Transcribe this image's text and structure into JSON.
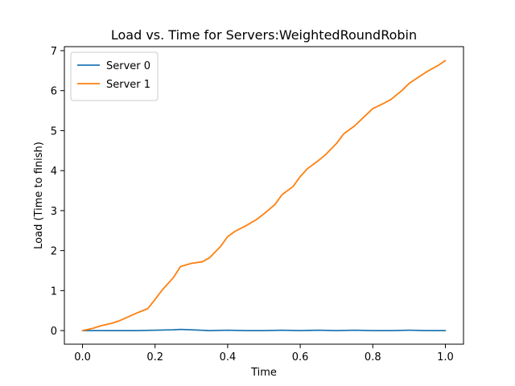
{
  "chart_data": {
    "type": "line",
    "title": "Load vs. Time for Servers:WeightedRoundRobin",
    "xlabel": "Time",
    "ylabel": "Load (Time to finish)",
    "xlim": [
      -0.05,
      1.05
    ],
    "ylim": [
      -0.34,
      7.1
    ],
    "xticks": [
      0.0,
      0.2,
      0.4,
      0.6,
      0.8,
      1.0
    ],
    "xtick_labels": [
      "0.0",
      "0.2",
      "0.4",
      "0.6",
      "0.8",
      "1.0"
    ],
    "yticks": [
      0,
      1,
      2,
      3,
      4,
      5,
      6,
      7
    ],
    "ytick_labels": [
      "0",
      "1",
      "2",
      "3",
      "4",
      "5",
      "6",
      "7"
    ],
    "grid": false,
    "legend_position": "top-left",
    "series": [
      {
        "name": "Server 0",
        "color": "#1f77b4",
        "x": [
          0.0,
          0.05,
          0.1,
          0.15,
          0.2,
          0.25,
          0.27,
          0.3,
          0.35,
          0.4,
          0.45,
          0.5,
          0.55,
          0.6,
          0.65,
          0.7,
          0.75,
          0.8,
          0.85,
          0.9,
          0.95,
          1.0
        ],
        "y": [
          0.0,
          0.0,
          0.0,
          0.0,
          0.01,
          0.02,
          0.03,
          0.02,
          0.0,
          0.01,
          0.0,
          0.0,
          0.01,
          0.0,
          0.01,
          0.0,
          0.01,
          0.0,
          0.0,
          0.01,
          0.0,
          0.0
        ]
      },
      {
        "name": "Server 1",
        "color": "#ff7f0e",
        "x": [
          0.0,
          0.03,
          0.05,
          0.08,
          0.1,
          0.13,
          0.15,
          0.18,
          0.2,
          0.22,
          0.25,
          0.27,
          0.3,
          0.33,
          0.35,
          0.38,
          0.4,
          0.42,
          0.45,
          0.48,
          0.5,
          0.53,
          0.55,
          0.58,
          0.6,
          0.62,
          0.65,
          0.67,
          0.7,
          0.72,
          0.75,
          0.78,
          0.8,
          0.83,
          0.85,
          0.88,
          0.9,
          0.93,
          0.95,
          0.98,
          1.0
        ],
        "y": [
          0.0,
          0.06,
          0.12,
          0.18,
          0.24,
          0.36,
          0.44,
          0.55,
          0.78,
          1.02,
          1.32,
          1.6,
          1.68,
          1.72,
          1.82,
          2.1,
          2.35,
          2.48,
          2.62,
          2.78,
          2.92,
          3.15,
          3.4,
          3.6,
          3.85,
          4.05,
          4.25,
          4.4,
          4.68,
          4.92,
          5.12,
          5.38,
          5.55,
          5.68,
          5.78,
          6.0,
          6.18,
          6.36,
          6.48,
          6.63,
          6.75
        ]
      }
    ]
  }
}
